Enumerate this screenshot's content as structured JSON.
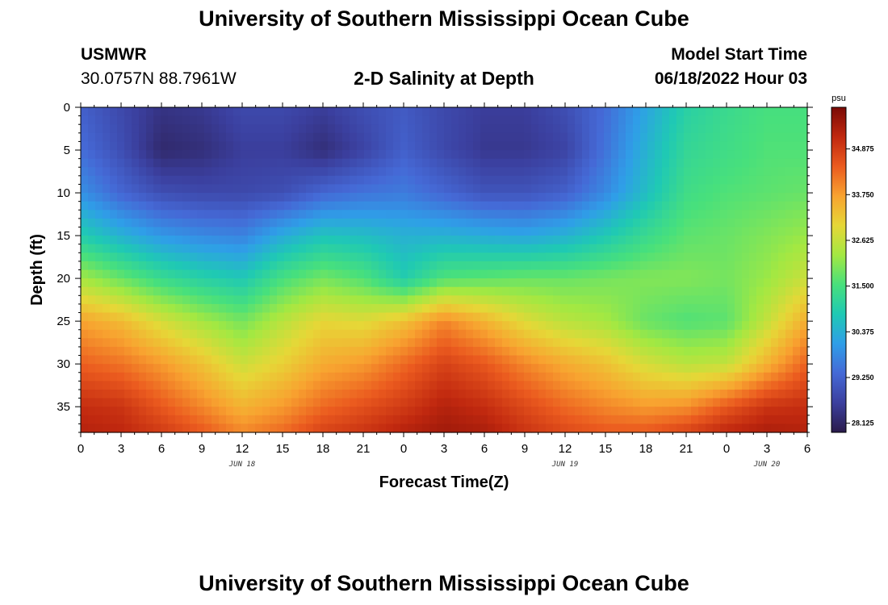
{
  "header": {
    "title": "University of Southern Mississippi Ocean Cube",
    "station_id": "USMWR",
    "station_coords": "30.0757N  88.7961W",
    "subtitle": "2-D Salinity at Depth",
    "model_start_label": "Model Start Time",
    "model_start_value": "06/18/2022 Hour 03"
  },
  "footer": {
    "title": "University of Southern Mississippi Ocean Cube"
  },
  "chart_data": {
    "type": "heatmap",
    "title": "2-D Salinity at Depth",
    "xlabel": "Forecast Time(Z)",
    "ylabel": "Depth (ft)",
    "xlim": [
      0,
      54
    ],
    "ylim": [
      38,
      0
    ],
    "x_ticks": [
      0,
      3,
      6,
      9,
      12,
      15,
      18,
      21,
      24,
      27,
      30,
      33,
      36,
      39,
      42,
      45,
      48,
      51,
      54
    ],
    "x_tick_labels": [
      "0",
      "3",
      "6",
      "9",
      "12",
      "15",
      "18",
      "21",
      "0",
      "3",
      "6",
      "9",
      "12",
      "15",
      "18",
      "21",
      "0",
      "3",
      "6"
    ],
    "y_ticks": [
      0,
      5,
      10,
      15,
      20,
      25,
      30,
      35
    ],
    "y_tick_labels": [
      "0",
      "5",
      "10",
      "15",
      "20",
      "25",
      "30",
      "35"
    ],
    "date_labels": [
      {
        "x": 12,
        "text": "JUN 18"
      },
      {
        "x": 36,
        "text": "JUN 19"
      },
      {
        "x": 51,
        "text": "JUN 20"
      }
    ],
    "colorbar": {
      "unit": "psu",
      "range": [
        27.9,
        35.9
      ],
      "tick_values": [
        34.875,
        33.75,
        32.625,
        31.5,
        30.375,
        29.25,
        28.125
      ],
      "tick_labels": [
        "34.875",
        "33.750",
        "32.625",
        "31.500",
        "30.375",
        "29.250",
        "28.125"
      ],
      "colormap": [
        "#2a1b4a",
        "#3b3f9e",
        "#4569d6",
        "#2f9ee8",
        "#1fc9b4",
        "#48e07c",
        "#a3e842",
        "#e6d737",
        "#f8a330",
        "#eb5b1f",
        "#c0280f",
        "#7a0a05"
      ]
    },
    "grid": false,
    "depth_levels": [
      0,
      5,
      10,
      15,
      20,
      25,
      30,
      35,
      38
    ],
    "time_hours": [
      0,
      3,
      6,
      9,
      12,
      15,
      18,
      21,
      24,
      27,
      30,
      33,
      36,
      39,
      42,
      45,
      48,
      51,
      54
    ],
    "salinity_values": [
      [
        29.2,
        28.8,
        28.4,
        28.5,
        28.8,
        28.8,
        28.6,
        28.9,
        29.1,
        28.8,
        28.6,
        28.6,
        28.9,
        29.4,
        30.2,
        31.0,
        31.3,
        31.5,
        31.5
      ],
      [
        29.4,
        28.9,
        28.2,
        28.3,
        28.6,
        28.6,
        28.3,
        28.7,
        29.2,
        28.8,
        28.5,
        28.5,
        28.7,
        29.5,
        30.4,
        31.2,
        31.4,
        31.6,
        31.6
      ],
      [
        29.9,
        29.3,
        28.9,
        28.8,
        28.8,
        28.9,
        29.3,
        29.5,
        29.6,
        29.3,
        29.0,
        29.0,
        29.2,
        29.8,
        30.6,
        31.4,
        31.6,
        31.7,
        31.8
      ],
      [
        30.9,
        30.4,
        30.0,
        29.8,
        29.7,
        30.3,
        30.7,
        30.6,
        30.4,
        30.4,
        30.3,
        30.2,
        30.4,
        30.8,
        31.3,
        31.7,
        31.8,
        32.0,
        32.2
      ],
      [
        32.3,
        31.8,
        31.3,
        31.0,
        30.8,
        31.5,
        31.9,
        31.6,
        30.9,
        31.6,
        31.7,
        31.8,
        31.8,
        31.9,
        32.0,
        32.0,
        31.9,
        32.2,
        32.7
      ],
      [
        33.7,
        33.4,
        32.8,
        32.3,
        31.9,
        32.5,
        33.0,
        32.9,
        33.3,
        34.0,
        33.5,
        32.9,
        32.5,
        32.3,
        31.8,
        31.6,
        31.7,
        32.6,
        33.6
      ],
      [
        34.4,
        34.2,
        33.8,
        33.3,
        32.7,
        33.1,
        33.6,
        33.8,
        34.3,
        34.8,
        34.5,
        34.0,
        33.6,
        33.3,
        32.8,
        32.5,
        32.6,
        33.5,
        34.4
      ],
      [
        35.1,
        35.0,
        34.5,
        34.0,
        33.5,
        33.8,
        34.3,
        34.6,
        34.9,
        35.3,
        35.1,
        34.7,
        34.3,
        34.0,
        33.8,
        33.9,
        34.5,
        35.0,
        35.1
      ],
      [
        35.3,
        35.2,
        34.9,
        34.5,
        34.0,
        34.3,
        34.8,
        35.0,
        35.3,
        35.5,
        35.4,
        35.0,
        34.7,
        34.5,
        34.5,
        34.8,
        35.2,
        35.4,
        35.3
      ]
    ]
  }
}
